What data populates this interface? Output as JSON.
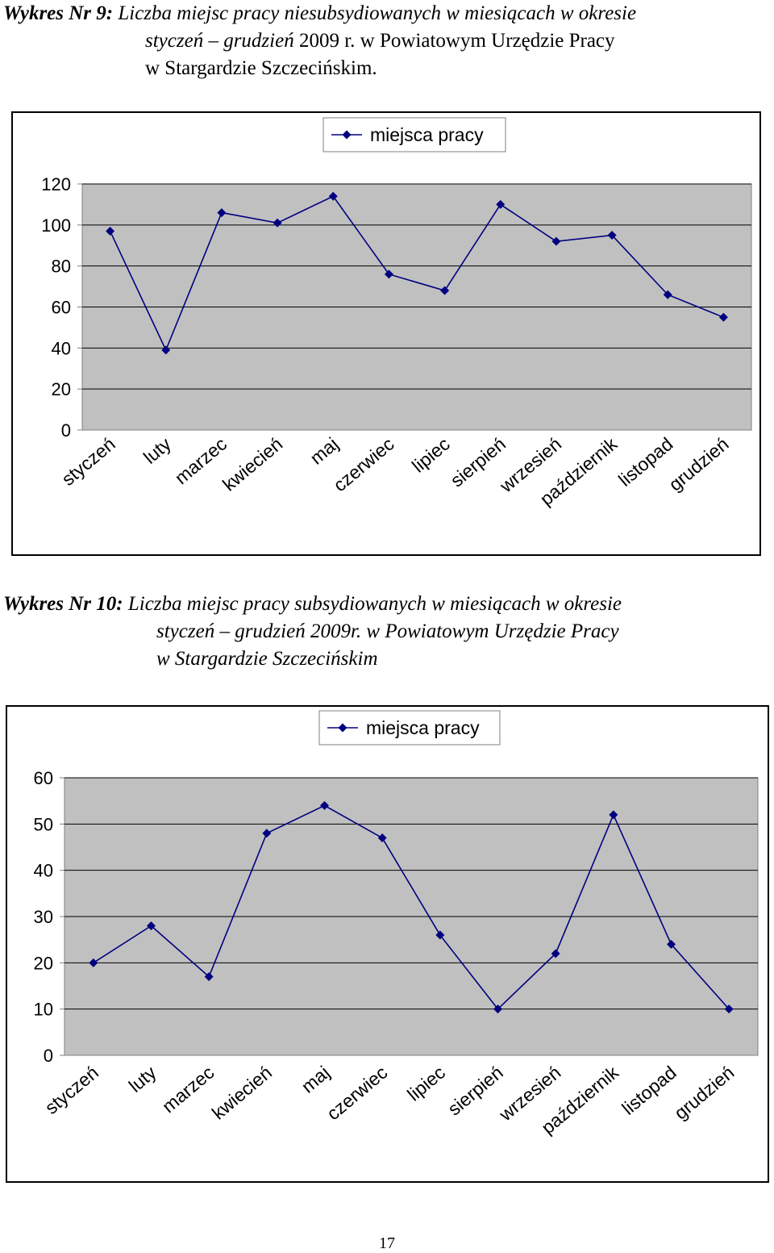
{
  "captions": [
    {
      "label": "Wykres Nr 9:",
      "line1": "Liczba miejsc pracy niesubsydiowanych w miesiącach w okresie",
      "line2_italic": "styczeń – grudzień",
      "line2_rest": "2009 r. w Powiatowym Urzędzie Pracy",
      "line3": "w Stargardzie Szczecińskim."
    },
    {
      "label": "Wykres Nr 10:",
      "line1": "Liczba miejsc pracy subsydiowanych w miesiącach w okresie",
      "line2": "styczeń – grudzień 2009r. w Powiatowym Urzędzie Pracy",
      "line3": "w Stargardzie Szczecińskim"
    }
  ],
  "chart_data": [
    {
      "type": "line",
      "categories": [
        "styczeń",
        "luty",
        "marzec",
        "kwiecień",
        "maj",
        "czerwiec",
        "lipiec",
        "sierpień",
        "wrzesień",
        "październik",
        "listopad",
        "grudzień"
      ],
      "series": [
        {
          "name": "miejsca pracy",
          "values": [
            97,
            39,
            106,
            101,
            114,
            76,
            68,
            110,
            92,
            95,
            66,
            55
          ]
        }
      ],
      "yticks": [
        "0",
        "20",
        "40",
        "60",
        "80",
        "100",
        "120"
      ],
      "ylim": [
        0,
        120
      ],
      "grid": true,
      "legend": "top-center",
      "colors": {
        "line": "#000080",
        "plot_bg": "#c0c0c0",
        "grid": "#000000"
      }
    },
    {
      "type": "line",
      "categories": [
        "styczeń",
        "luty",
        "marzec",
        "kwiecień",
        "maj",
        "czerwiec",
        "lipiec",
        "sierpień",
        "wrzesień",
        "październik",
        "listopad",
        "grudzień"
      ],
      "series": [
        {
          "name": "miejsca pracy",
          "values": [
            20,
            28,
            17,
            48,
            54,
            47,
            26,
            10,
            22,
            52,
            24,
            10
          ]
        }
      ],
      "yticks": [
        "0",
        "10",
        "20",
        "30",
        "40",
        "50",
        "60"
      ],
      "ylim": [
        0,
        60
      ],
      "grid": true,
      "legend": "top-center",
      "colors": {
        "line": "#000080",
        "plot_bg": "#c0c0c0",
        "grid": "#000000"
      }
    }
  ],
  "page_number": "17"
}
